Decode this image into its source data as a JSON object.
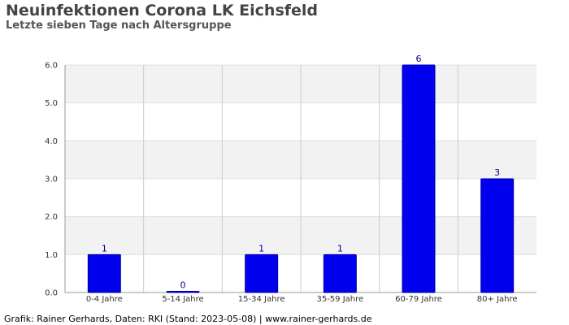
{
  "chart_data": {
    "type": "bar",
    "title": "Neuinfektionen Corona LK Eichsfeld",
    "subtitle": "Letzte sieben Tage nach Altersgruppe",
    "categories": [
      "0-4 Jahre",
      "5-14 Jahre",
      "15-34 Jahre",
      "35-59 Jahre",
      "60-79 Jahre",
      "80+ Jahre"
    ],
    "values": [
      1,
      0,
      1,
      1,
      6,
      3
    ],
    "data_labels": [
      "1",
      "0",
      "1",
      "1",
      "6",
      "3"
    ],
    "y_ticks": [
      "0.0",
      "1.0",
      "2.0",
      "3.0",
      "4.0",
      "5.0",
      "6.0"
    ],
    "ylim": [
      0,
      6
    ],
    "grid": true,
    "bar_color": "#0000ee",
    "label_color": "#000080"
  },
  "footer": "Grafik: Rainer Gerhards, Daten: RKI (Stand: 2023-05-08) | www.rainer-gerhards.de"
}
